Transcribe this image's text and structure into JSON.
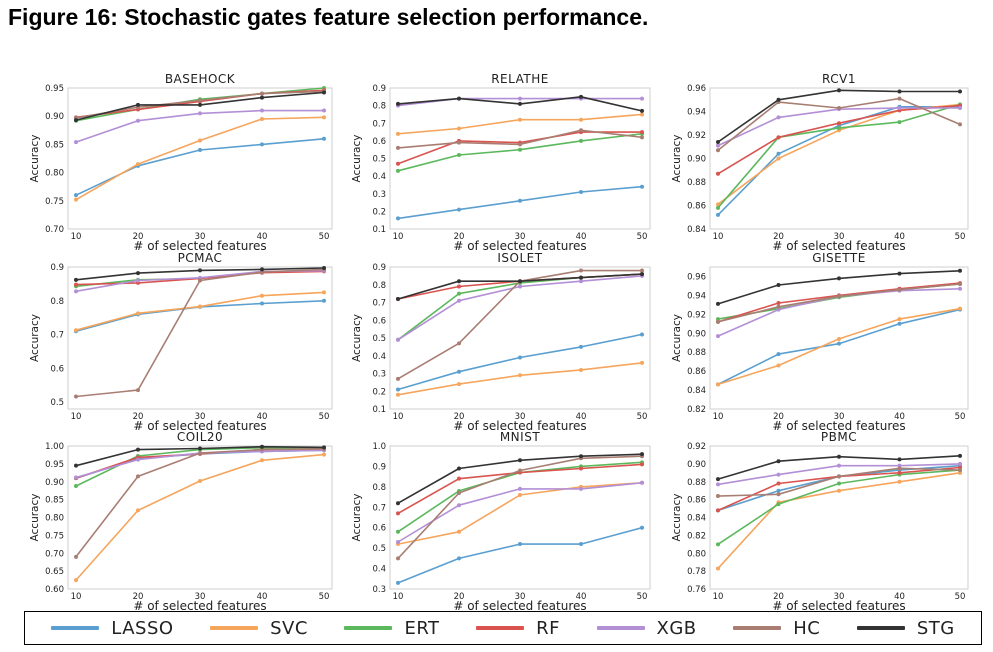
{
  "figure_title": "Figure 16: Stochastic gates feature selection performance.",
  "colors": {
    "LASSO": "#5a9fcf",
    "SVC": "#f5a55c",
    "ERT": "#5cb85c",
    "RF": "#d9534f",
    "XGB": "#b38fd6",
    "HC": "#a87e73",
    "STG": "#333333"
  },
  "legend": [
    "LASSO",
    "SVC",
    "ERT",
    "RF",
    "XGB",
    "HC",
    "STG"
  ],
  "chart_data": [
    {
      "type": "line",
      "title": "BASEHOCK",
      "xlabel": "# of selected features",
      "ylabel": "Accuracy",
      "x": [
        10,
        20,
        30,
        40,
        50
      ],
      "ylim": [
        0.7,
        0.95
      ],
      "yticks": [
        "0.70",
        "0.75",
        "0.80",
        "0.85",
        "0.90",
        "0.95"
      ],
      "series": [
        {
          "name": "LASSO",
          "values": [
            0.76,
            0.812,
            0.84,
            0.85,
            0.86
          ]
        },
        {
          "name": "SVC",
          "values": [
            0.752,
            0.815,
            0.857,
            0.895,
            0.898
          ]
        },
        {
          "name": "ERT",
          "values": [
            0.892,
            0.912,
            0.93,
            0.94,
            0.95
          ]
        },
        {
          "name": "RF",
          "values": [
            0.898,
            0.912,
            0.926,
            0.94,
            0.946
          ]
        },
        {
          "name": "XGB",
          "values": [
            0.854,
            0.892,
            0.905,
            0.91,
            0.91
          ]
        },
        {
          "name": "HC",
          "values": [
            0.897,
            0.916,
            0.928,
            0.94,
            0.944
          ]
        },
        {
          "name": "STG",
          "values": [
            0.893,
            0.92,
            0.92,
            0.933,
            0.942
          ]
        }
      ]
    },
    {
      "type": "line",
      "title": "RELATHE",
      "xlabel": "# of selected features",
      "ylabel": "Accuracy",
      "x": [
        10,
        20,
        30,
        40,
        50
      ],
      "ylim": [
        0.1,
        0.9
      ],
      "yticks": [
        "0.1",
        "0.2",
        "0.3",
        "0.4",
        "0.5",
        "0.6",
        "0.7",
        "0.8",
        "0.9"
      ],
      "series": [
        {
          "name": "LASSO",
          "values": [
            0.16,
            0.21,
            0.26,
            0.31,
            0.34
          ]
        },
        {
          "name": "SVC",
          "values": [
            0.64,
            0.67,
            0.72,
            0.72,
            0.75
          ]
        },
        {
          "name": "ERT",
          "values": [
            0.43,
            0.52,
            0.55,
            0.6,
            0.64
          ]
        },
        {
          "name": "RF",
          "values": [
            0.47,
            0.6,
            0.59,
            0.65,
            0.65
          ]
        },
        {
          "name": "XGB",
          "values": [
            0.8,
            0.84,
            0.84,
            0.84,
            0.84
          ]
        },
        {
          "name": "HC",
          "values": [
            0.56,
            0.59,
            0.58,
            0.66,
            0.62
          ]
        },
        {
          "name": "STG",
          "values": [
            0.81,
            0.84,
            0.81,
            0.85,
            0.77
          ]
        }
      ]
    },
    {
      "type": "line",
      "title": "RCV1",
      "xlabel": "# of selected features",
      "ylabel": "Accuracy",
      "x": [
        10,
        20,
        30,
        40,
        50
      ],
      "ylim": [
        0.84,
        0.96
      ],
      "yticks": [
        "0.84",
        "0.86",
        "0.88",
        "0.90",
        "0.92",
        "0.94",
        "0.96"
      ],
      "series": [
        {
          "name": "LASSO",
          "values": [
            0.852,
            0.904,
            0.928,
            0.944,
            0.944
          ]
        },
        {
          "name": "SVC",
          "values": [
            0.861,
            0.9,
            0.924,
            0.941,
            0.946
          ]
        },
        {
          "name": "ERT",
          "values": [
            0.858,
            0.918,
            0.926,
            0.931,
            0.946
          ]
        },
        {
          "name": "RF",
          "values": [
            0.887,
            0.918,
            0.93,
            0.941,
            0.945
          ]
        },
        {
          "name": "XGB",
          "values": [
            0.911,
            0.935,
            0.942,
            0.943,
            0.943
          ]
        },
        {
          "name": "HC",
          "values": [
            0.907,
            0.948,
            0.943,
            0.951,
            0.929
          ]
        },
        {
          "name": "STG",
          "values": [
            0.914,
            0.95,
            0.958,
            0.957,
            0.957
          ]
        }
      ]
    },
    {
      "type": "line",
      "title": "PCMAC",
      "xlabel": "# of selected features",
      "ylabel": "Accuracy",
      "x": [
        10,
        20,
        30,
        40,
        50
      ],
      "ylim": [
        0.48,
        0.9
      ],
      "yticks": [
        "0.5",
        "0.6",
        "0.7",
        "0.8",
        "0.9"
      ],
      "yticks_values": [
        0.5,
        0.6,
        0.7,
        0.8,
        0.9
      ],
      "series": [
        {
          "name": "LASSO",
          "values": [
            0.71,
            0.76,
            0.782,
            0.792,
            0.8
          ]
        },
        {
          "name": "SVC",
          "values": [
            0.713,
            0.763,
            0.783,
            0.815,
            0.825
          ]
        },
        {
          "name": "ERT",
          "values": [
            0.843,
            0.862,
            0.866,
            0.885,
            0.89
          ]
        },
        {
          "name": "RF",
          "values": [
            0.848,
            0.853,
            0.866,
            0.883,
            0.887
          ]
        },
        {
          "name": "XGB",
          "values": [
            0.828,
            0.86,
            0.868,
            0.887,
            0.889
          ]
        },
        {
          "name": "HC",
          "values": [
            0.517,
            0.536,
            0.86,
            0.885,
            0.893
          ]
        },
        {
          "name": "STG",
          "values": [
            0.862,
            0.882,
            0.89,
            0.893,
            0.897
          ]
        }
      ]
    },
    {
      "type": "line",
      "title": "ISOLET",
      "xlabel": "# of selected features",
      "ylabel": "Accuracy",
      "x": [
        10,
        20,
        30,
        40,
        50
      ],
      "ylim": [
        0.1,
        0.9
      ],
      "yticks": [
        "0.1",
        "0.2",
        "0.3",
        "0.4",
        "0.5",
        "0.6",
        "0.7",
        "0.8",
        "0.9"
      ],
      "series": [
        {
          "name": "LASSO",
          "values": [
            0.21,
            0.31,
            0.39,
            0.45,
            0.52
          ]
        },
        {
          "name": "SVC",
          "values": [
            0.18,
            0.24,
            0.29,
            0.32,
            0.36
          ]
        },
        {
          "name": "ERT",
          "values": [
            0.49,
            0.75,
            0.81,
            0.84,
            0.86
          ]
        },
        {
          "name": "RF",
          "values": [
            0.72,
            0.79,
            0.82,
            0.84,
            0.86
          ]
        },
        {
          "name": "XGB",
          "values": [
            0.49,
            0.71,
            0.79,
            0.82,
            0.85
          ]
        },
        {
          "name": "HC",
          "values": [
            0.27,
            0.47,
            0.82,
            0.88,
            0.88
          ]
        },
        {
          "name": "STG",
          "values": [
            0.72,
            0.82,
            0.82,
            0.84,
            0.86
          ]
        }
      ]
    },
    {
      "type": "line",
      "title": "GISETTE",
      "xlabel": "# of selected features",
      "ylabel": "Accuracy",
      "x": [
        10,
        20,
        30,
        40,
        50
      ],
      "ylim": [
        0.82,
        0.97
      ],
      "yticks": [
        "0.82",
        "0.84",
        "0.86",
        "0.88",
        "0.90",
        "0.92",
        "0.94",
        "0.96"
      ],
      "yticks_values": [
        0.82,
        0.84,
        0.86,
        0.88,
        0.9,
        0.92,
        0.94,
        0.96
      ],
      "series": [
        {
          "name": "LASSO",
          "values": [
            0.846,
            0.878,
            0.889,
            0.91,
            0.925
          ]
        },
        {
          "name": "SVC",
          "values": [
            0.846,
            0.866,
            0.894,
            0.915,
            0.926
          ]
        },
        {
          "name": "ERT",
          "values": [
            0.915,
            0.926,
            0.938,
            0.946,
            0.952
          ]
        },
        {
          "name": "RF",
          "values": [
            0.912,
            0.932,
            0.94,
            0.947,
            0.953
          ]
        },
        {
          "name": "XGB",
          "values": [
            0.897,
            0.925,
            0.939,
            0.945,
            0.947
          ]
        },
        {
          "name": "HC",
          "values": [
            0.912,
            0.928,
            0.939,
            0.946,
            0.952
          ]
        },
        {
          "name": "STG",
          "values": [
            0.931,
            0.951,
            0.958,
            0.963,
            0.966
          ]
        }
      ]
    },
    {
      "type": "line",
      "title": "COIL20",
      "xlabel": "# of selected features",
      "ylabel": "Accuracy",
      "x": [
        10,
        20,
        30,
        40,
        50
      ],
      "ylim": [
        0.6,
        1.0
      ],
      "yticks": [
        "0.60",
        "0.65",
        "0.70",
        "0.75",
        "0.80",
        "0.85",
        "0.90",
        "0.95",
        "1.00"
      ],
      "series": [
        {
          "name": "LASSO",
          "values": [
            0.91,
            0.965,
            0.978,
            0.985,
            0.988
          ]
        },
        {
          "name": "SVC",
          "values": [
            0.625,
            0.82,
            0.902,
            0.96,
            0.976
          ]
        },
        {
          "name": "ERT",
          "values": [
            0.888,
            0.972,
            0.99,
            0.995,
            0.995
          ]
        },
        {
          "name": "RF",
          "values": [
            0.91,
            0.968,
            0.978,
            0.99,
            0.992
          ]
        },
        {
          "name": "XGB",
          "values": [
            0.912,
            0.962,
            0.98,
            0.985,
            0.988
          ]
        },
        {
          "name": "HC",
          "values": [
            0.69,
            0.915,
            0.98,
            0.99,
            0.992
          ]
        },
        {
          "name": "STG",
          "values": [
            0.945,
            0.99,
            0.993,
            0.998,
            0.996
          ]
        }
      ]
    },
    {
      "type": "line",
      "title": "MNIST",
      "xlabel": "# of selected features",
      "ylabel": "Accuracy",
      "x": [
        10,
        20,
        30,
        40,
        50
      ],
      "ylim": [
        0.3,
        1.0
      ],
      "yticks": [
        "0.3",
        "0.4",
        "0.5",
        "0.6",
        "0.7",
        "0.8",
        "0.9",
        "1.0"
      ],
      "series": [
        {
          "name": "LASSO",
          "values": [
            0.33,
            0.45,
            0.52,
            0.52,
            0.6
          ]
        },
        {
          "name": "SVC",
          "values": [
            0.52,
            0.58,
            0.76,
            0.8,
            0.82
          ]
        },
        {
          "name": "ERT",
          "values": [
            0.58,
            0.78,
            0.87,
            0.9,
            0.92
          ]
        },
        {
          "name": "RF",
          "values": [
            0.67,
            0.84,
            0.87,
            0.89,
            0.91
          ]
        },
        {
          "name": "XGB",
          "values": [
            0.53,
            0.71,
            0.79,
            0.79,
            0.82
          ]
        },
        {
          "name": "HC",
          "values": [
            0.45,
            0.77,
            0.88,
            0.94,
            0.95
          ]
        },
        {
          "name": "STG",
          "values": [
            0.72,
            0.89,
            0.93,
            0.95,
            0.96
          ]
        }
      ]
    },
    {
      "type": "line",
      "title": "PBMC",
      "xlabel": "# of selected features",
      "ylabel": "Accuracy",
      "x": [
        10,
        20,
        30,
        40,
        50
      ],
      "ylim": [
        0.76,
        0.92
      ],
      "yticks": [
        "0.76",
        "0.78",
        "0.80",
        "0.82",
        "0.84",
        "0.86",
        "0.88",
        "0.90",
        "0.92"
      ],
      "series": [
        {
          "name": "LASSO",
          "values": [
            0.848,
            0.87,
            0.886,
            0.893,
            0.898
          ]
        },
        {
          "name": "SVC",
          "values": [
            0.783,
            0.857,
            0.87,
            0.88,
            0.89
          ]
        },
        {
          "name": "ERT",
          "values": [
            0.81,
            0.855,
            0.878,
            0.888,
            0.893
          ]
        },
        {
          "name": "RF",
          "values": [
            0.848,
            0.878,
            0.886,
            0.89,
            0.896
          ]
        },
        {
          "name": "XGB",
          "values": [
            0.877,
            0.888,
            0.898,
            0.898,
            0.9
          ]
        },
        {
          "name": "HC",
          "values": [
            0.864,
            0.866,
            0.886,
            0.895,
            0.893
          ]
        },
        {
          "name": "STG",
          "values": [
            0.883,
            0.903,
            0.908,
            0.905,
            0.909
          ]
        }
      ]
    }
  ]
}
